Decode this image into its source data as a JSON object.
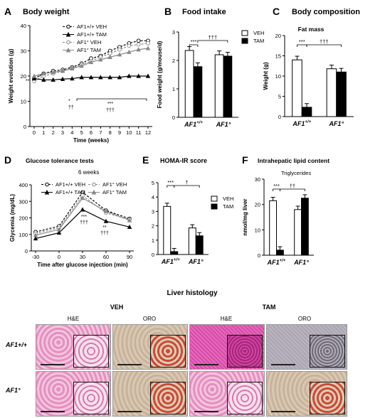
{
  "panel_letters": {
    "A": "A",
    "B": "B",
    "C": "C",
    "D": "D",
    "E": "E",
    "F": "F"
  },
  "titles": {
    "body_weight": "Body weight",
    "food_intake": "Food intake",
    "body_composition": "Body composition",
    "fat_mass": "Fat mass",
    "glucose": "Glucose tolerance tests",
    "glucose_sub": "6 weeks",
    "homa": "HOMA-IR score",
    "lipid": "Intrahepatic lipid content",
    "lipid_sub": "Triglycerides",
    "histology": "Liver histology",
    "veh": "VEH",
    "tam": "TAM",
    "he": "H&E",
    "oro": "ORO"
  },
  "genotypes": {
    "ff": "AF1+/+",
    "null": "AF1°"
  },
  "legend": {
    "ff_veh": "AF1+/+ VEH",
    "ff_tam": "AF1+/+ TAM",
    "null_veh": "AF1° VEH",
    "null_tam": "AF1° TAM",
    "veh": "VEH",
    "tam": "TAM"
  },
  "colors": {
    "veh": "#ffffff",
    "tam": "#000000",
    "null_line": "#888888",
    "stroke": "#000000",
    "he": "#e48fc0",
    "oro": "#c8b39a",
    "he_tam_ff": "#d94aa8",
    "oro_tam_ff": "#a9a4b0"
  },
  "chart_data": [
    {
      "id": "A",
      "type": "line",
      "title": "Body weight",
      "xlabel": "Time (weeks)",
      "ylabel": "Weight evolution (g)",
      "x": [
        0,
        1,
        2,
        3,
        4,
        5,
        6,
        7,
        8,
        9,
        10,
        11,
        12
      ],
      "ylim": [
        0,
        40
      ],
      "yticks": [
        0,
        10,
        20,
        30,
        40
      ],
      "series": [
        {
          "name": "AF1+/+ VEH",
          "values": [
            19,
            21,
            22,
            22.5,
            23.5,
            25,
            27,
            28,
            30,
            31.5,
            33,
            34,
            34
          ]
        },
        {
          "name": "AF1° VEH",
          "values": [
            18,
            20,
            21,
            22,
            23,
            24.5,
            26,
            27.5,
            29,
            30.5,
            32,
            32.5,
            33
          ]
        },
        {
          "name": "AF1+/+ TAM",
          "values": [
            19,
            18.5,
            18.5,
            18.8,
            19,
            19.5,
            19.5,
            19.5,
            19.5,
            19.5,
            20,
            20,
            20
          ]
        },
        {
          "name": "AF1° TAM",
          "values": [
            20,
            21,
            21.5,
            22,
            23,
            24,
            25.5,
            26.5,
            27.5,
            28.5,
            29.5,
            30.5,
            31
          ]
        }
      ],
      "annotations": [
        "**",
        "*",
        "*",
        "††",
        "***",
        "†††"
      ]
    },
    {
      "id": "B",
      "type": "bar",
      "title": "Food intake",
      "ylabel": "Food weight (g/mouse/d)",
      "categories": [
        "AF1+/+",
        "AF1°"
      ],
      "ylim": [
        0,
        3
      ],
      "yticks": [
        0,
        1,
        2,
        3
      ],
      "series": [
        {
          "name": "VEH",
          "values": [
            2.35,
            2.2
          ]
        },
        {
          "name": "TAM",
          "values": [
            1.78,
            2.15
          ]
        }
      ],
      "annotations": [
        "***",
        "†††"
      ]
    },
    {
      "id": "C",
      "type": "bar",
      "title": "Fat mass",
      "ylabel": "Weight (g)",
      "categories": [
        "AF1+/+",
        "AF1°"
      ],
      "ylim": [
        0,
        20
      ],
      "yticks": [
        0,
        5,
        10,
        15,
        20
      ],
      "series": [
        {
          "name": "VEH",
          "values": [
            14,
            11.8
          ]
        },
        {
          "name": "TAM",
          "values": [
            2.3,
            11
          ]
        }
      ],
      "annotations": [
        "***",
        "†††"
      ]
    },
    {
      "id": "D",
      "type": "line",
      "title": "Glucose tolerance tests",
      "subtitle": "6 weeks",
      "xlabel": "Time after glucose injection (min)",
      "ylabel": "Glycemia (mg/dL)",
      "x": [
        -30,
        0,
        30,
        60,
        90
      ],
      "ylim": [
        0,
        400
      ],
      "yticks": [
        0,
        100,
        200,
        300,
        400
      ],
      "series": [
        {
          "name": "AF1+/+ VEH",
          "values": [
            115,
            150,
            355,
            245,
            195
          ]
        },
        {
          "name": "AF1° VEH",
          "values": [
            105,
            140,
            335,
            230,
            190
          ]
        },
        {
          "name": "AF1+/+ TAM",
          "values": [
            75,
            110,
            250,
            180,
            145
          ]
        },
        {
          "name": "AF1° TAM",
          "values": [
            95,
            130,
            320,
            240,
            185
          ]
        }
      ],
      "annotations": [
        "***",
        "†††",
        "**",
        "†††"
      ]
    },
    {
      "id": "E",
      "type": "bar",
      "title": "HOMA-IR score",
      "categories": [
        "AF1+/+",
        "AF1°"
      ],
      "ylim": [
        0,
        5
      ],
      "yticks": [
        0,
        1,
        2,
        3,
        4,
        5
      ],
      "series": [
        {
          "name": "VEH",
          "values": [
            3.35,
            1.85
          ]
        },
        {
          "name": "TAM",
          "values": [
            0.2,
            1.3
          ]
        }
      ],
      "annotations": [
        "***",
        "†"
      ]
    },
    {
      "id": "F",
      "type": "bar",
      "title": "Intrahepatic lipid content",
      "subtitle": "Triglycerides",
      "ylabel": "nmol/mg liver",
      "categories": [
        "AF1+/+",
        "AF1°"
      ],
      "ylim": [
        0,
        30
      ],
      "yticks": [
        0,
        10,
        20,
        30
      ],
      "series": [
        {
          "name": "VEH",
          "values": [
            21.5,
            18
          ]
        },
        {
          "name": "TAM",
          "values": [
            2,
            22.5
          ]
        }
      ],
      "annotations": [
        "***",
        "††"
      ]
    }
  ]
}
